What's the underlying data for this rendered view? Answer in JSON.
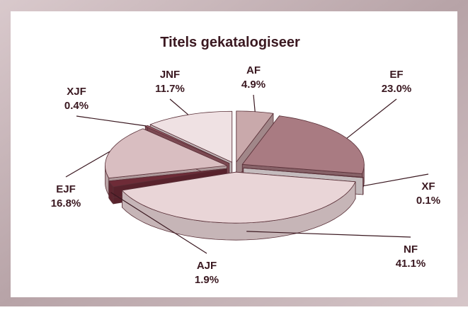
{
  "chart_data": {
    "type": "pie3d",
    "title": "Titels gekatalogiseer",
    "categories": [
      "AF",
      "EF",
      "XF",
      "NF",
      "AJF",
      "EJF",
      "XJF",
      "JNF"
    ],
    "values": [
      4.9,
      23.0,
      0.1,
      41.1,
      1.9,
      16.8,
      0.4,
      11.7
    ],
    "value_labels": [
      "4.9%",
      "23.0%",
      "0.1%",
      "41.1%",
      "1.9%",
      "16.8%",
      "0.4%",
      "11.7%"
    ],
    "colors": [
      "#c9a9ab",
      "#a97b82",
      "#f5eaec",
      "#e9d5d7",
      "#6e2b37",
      "#d9bec1",
      "#9b5b67",
      "#efe1e3"
    ]
  }
}
